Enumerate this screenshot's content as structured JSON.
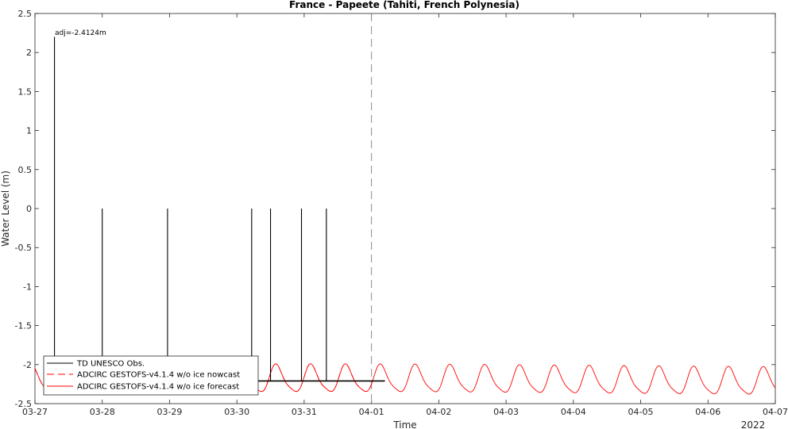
{
  "chart_data": {
    "type": "line",
    "title": "France - Papeete (Tahiti, French Polynesia)",
    "xlabel": "Time",
    "ylabel": "Water Level (m)",
    "year_label": "2022",
    "xlim": [
      0,
      11
    ],
    "ylim": [
      -2.5,
      2.5
    ],
    "x_ticks": [
      0,
      1,
      2,
      3,
      4,
      5,
      6,
      7,
      8,
      9,
      10,
      11
    ],
    "x_tick_labels": [
      "03-27",
      "03-28",
      "03-29",
      "03-30",
      "03-31",
      "04-01",
      "04-02",
      "04-03",
      "04-04",
      "04-05",
      "04-06",
      "04-07"
    ],
    "y_ticks": [
      2.5,
      2,
      1.5,
      1,
      0.5,
      0,
      -0.5,
      -1,
      -1.5,
      -2,
      -2.5
    ],
    "y_tick_labels": [
      "2.5",
      "2",
      "1.5",
      "1",
      "0.5",
      "0",
      "-0.5",
      "-1",
      "-1.5",
      "-2",
      "-2.5"
    ],
    "nowcast_forecast_boundary": 5,
    "annotation": "adj=-2.4124m",
    "legend_position": "bottom-left",
    "legend": [
      {
        "label": "TD UNESCO Obs.",
        "color": "#000000",
        "style": "solid"
      },
      {
        "label": "ADCIRC GESTOFS-v4.1.4 w/o ice nowcast",
        "color": "#ff0000",
        "style": "dashed"
      },
      {
        "label": "ADCIRC GESTOFS-v4.1.4 w/o ice forecast",
        "color": "#ff0000",
        "style": "solid"
      }
    ],
    "observations": {
      "baseline_x": [
        3.0,
        5.2
      ],
      "baseline_y": -2.21,
      "spikes": [
        {
          "x": 0.29,
          "y": 2.2
        },
        {
          "x": 1.0,
          "y": 0.0
        },
        {
          "x": 1.97,
          "y": 0.0
        },
        {
          "x": 3.22,
          "y": 0.0
        },
        {
          "x": 3.5,
          "y": 0.0
        },
        {
          "x": 3.96,
          "y": 0.0
        },
        {
          "x": 4.33,
          "y": 0.0
        }
      ]
    },
    "series": [
      {
        "name": "ADCIRC GESTOFS-v4.1.4 w/o ice nowcast",
        "x_range": [
          0,
          5
        ],
        "mean": -2.21,
        "amplitude": 0.17,
        "period_days": 0.5175,
        "phase_peak_day": 0.485
      },
      {
        "name": "ADCIRC GESTOFS-v4.1.4 w/o ice forecast",
        "x_range": [
          0,
          11
        ],
        "mean": -2.21,
        "amplitude": 0.17,
        "period_days": 0.5175,
        "phase_peak_day": 0.485
      }
    ]
  }
}
